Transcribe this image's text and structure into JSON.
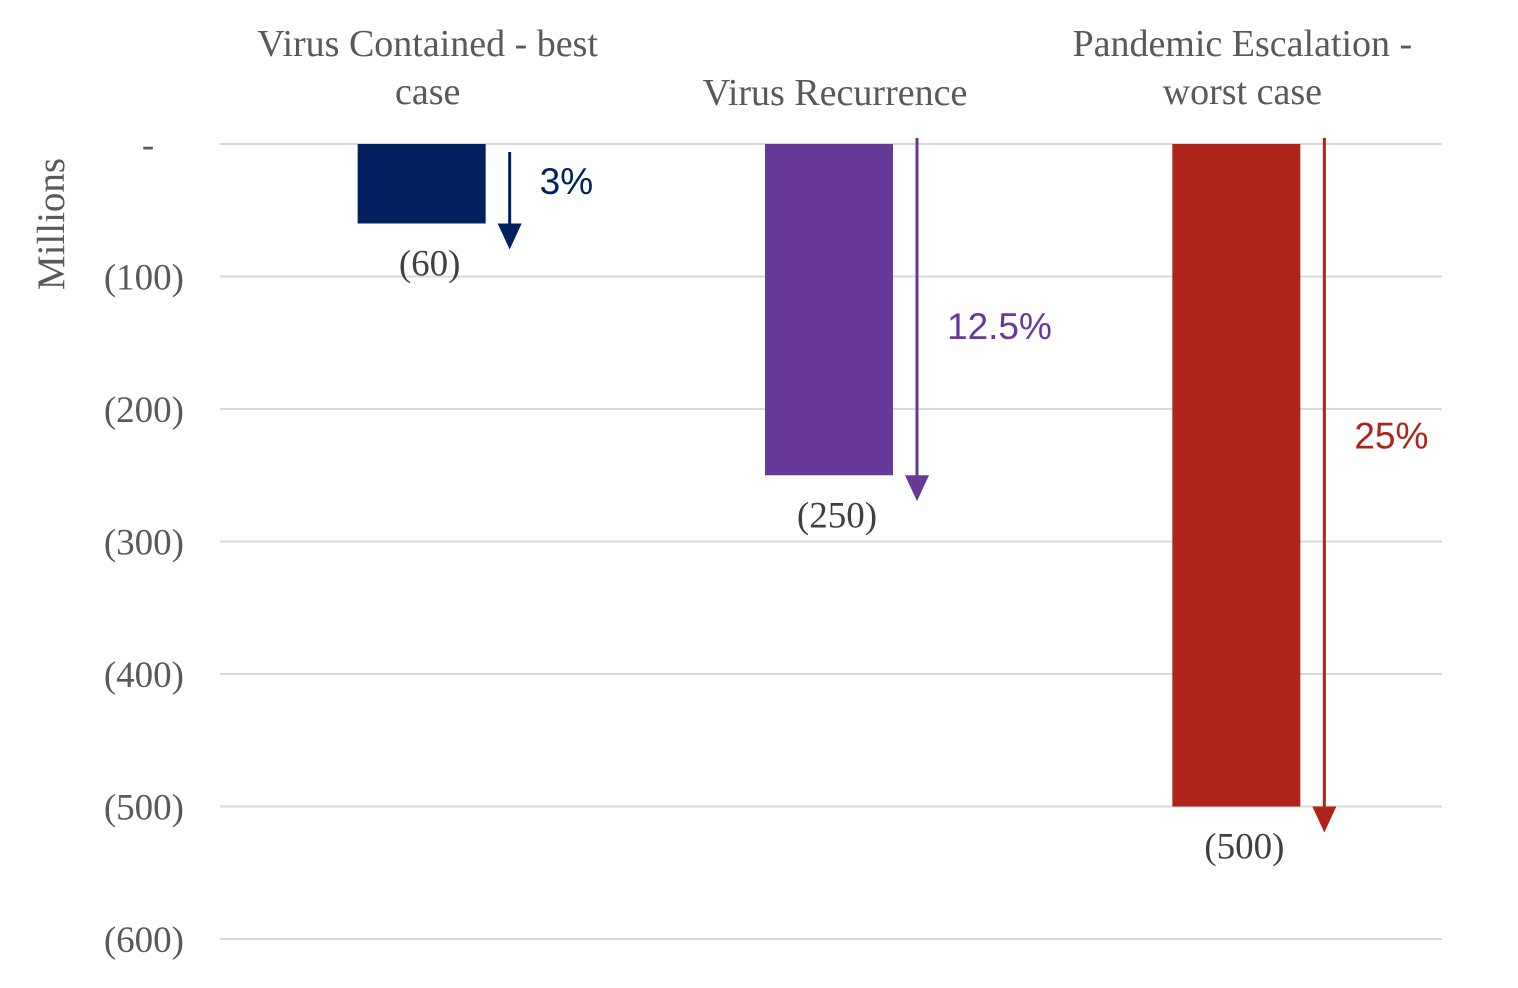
{
  "chart_data": {
    "type": "bar",
    "ylabel": "Millions",
    "ylim": [
      -600,
      0
    ],
    "yticks": [
      {
        "value": 0,
        "label": "-"
      },
      {
        "value": -100,
        "label": "(100)"
      },
      {
        "value": -200,
        "label": "(200)"
      },
      {
        "value": -300,
        "label": "(300)"
      },
      {
        "value": -400,
        "label": "(400)"
      },
      {
        "value": -500,
        "label": "(500)"
      },
      {
        "value": -600,
        "label": "(600)"
      }
    ],
    "grid": true,
    "categories": [
      [
        "Virus Contained - best",
        "case"
      ],
      [
        "Virus Recurrence"
      ],
      [
        "Pandemic Escalation -",
        "worst case"
      ]
    ],
    "values": [
      -60,
      -250,
      -500
    ],
    "value_labels": [
      "(60)",
      "(250)",
      "(500)"
    ],
    "percent_labels": [
      "3%",
      "12.5%",
      "25%"
    ],
    "colors": [
      "#002060",
      "#673A9A",
      "#AE231A"
    ]
  }
}
